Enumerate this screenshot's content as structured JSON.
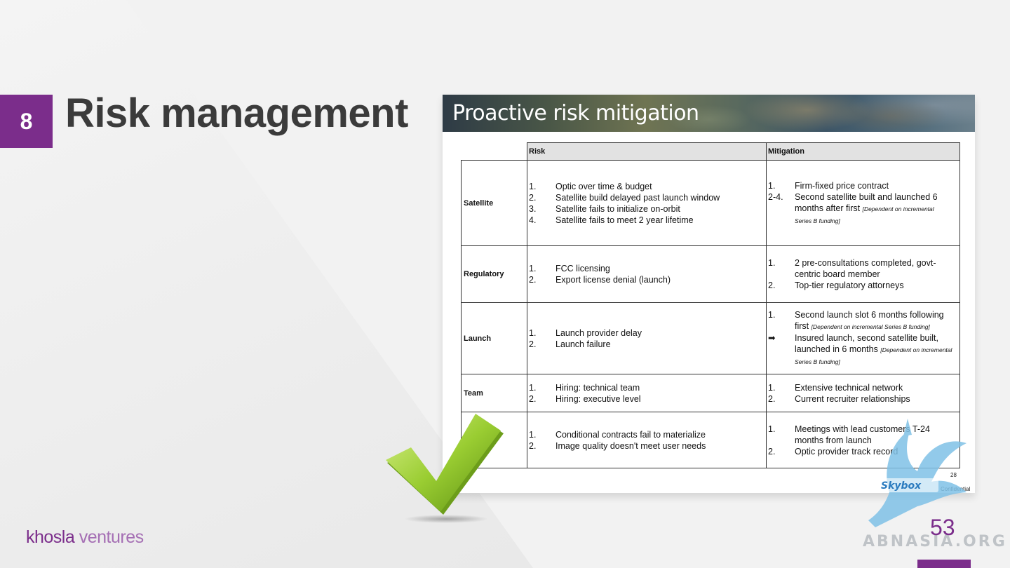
{
  "slide": {
    "number": "8",
    "title": "Risk management",
    "page_number": "53",
    "brand_part1": "khosla",
    "brand_part2": "ventures",
    "watermark_text": "ABNASIA.ORG"
  },
  "embedded_slide": {
    "title": "Proactive risk mitigation",
    "headers": {
      "risk": "Risk",
      "mitigation": "Mitigation"
    },
    "rows": [
      {
        "category": "Satellite",
        "risks": [
          {
            "num": "1.",
            "text": "Optic over time & budget"
          },
          {
            "num": "2.",
            "text": "Satellite build delayed past launch window"
          },
          {
            "num": "3.",
            "text": "Satellite fails to initialize on-orbit"
          },
          {
            "num": "4.",
            "text": "Satellite fails to meet 2 year lifetime"
          }
        ],
        "mitigations": [
          {
            "num": "1.",
            "text": "Firm-fixed price contract"
          },
          {
            "num": "2-4.",
            "text": "Second satellite built and launched 6"
          },
          {
            "num": "",
            "text": "months after first",
            "note": "[Dependent on incremental"
          },
          {
            "num": "",
            "text": "",
            "note": "Series B funding]"
          }
        ]
      },
      {
        "category": "Regulatory",
        "risks": [
          {
            "num": "1.",
            "text": "FCC licensing"
          },
          {
            "num": "2.",
            "text": "Export license denial (launch)"
          }
        ],
        "mitigations": [
          {
            "num": "1.",
            "text": "2 pre-consultations completed, govt-"
          },
          {
            "num": "",
            "text": "centric board member"
          },
          {
            "num": "2.",
            "text": "Top-tier regulatory attorneys"
          }
        ]
      },
      {
        "category": "Launch",
        "risks": [
          {
            "num": "1.",
            "text": "Launch provider delay"
          },
          {
            "num": "2.",
            "text": "Launch failure"
          }
        ],
        "mitigations": [
          {
            "num": "1.",
            "text": "Second launch slot 6 months following"
          },
          {
            "num": "",
            "text": "first",
            "note": "[Dependent on incremental Series B funding]"
          },
          {
            "num": "➡",
            "text": "Insured launch, second satellite built,"
          },
          {
            "num": "",
            "text": "launched in 6 months",
            "note": "[Dependent on incremental"
          },
          {
            "num": "",
            "text": "",
            "note": "Series B funding]"
          }
        ]
      },
      {
        "category": "Team",
        "risks": [
          {
            "num": "1.",
            "text": "Hiring: technical team"
          },
          {
            "num": "2.",
            "text": "Hiring: executive level"
          }
        ],
        "mitigations": [
          {
            "num": "1.",
            "text": "Extensive technical network"
          },
          {
            "num": "2.",
            "text": "Current recruiter relationships"
          }
        ]
      },
      {
        "category": "",
        "risks": [
          {
            "num": "1.",
            "text": "Conditional contracts fail to materialize"
          },
          {
            "num": "2.",
            "text": "Image quality doesn't meet user needs"
          }
        ],
        "mitigations": [
          {
            "num": "1.",
            "text": "Meetings with lead customers T-24"
          },
          {
            "num": "",
            "text": "months from launch"
          },
          {
            "num": "2.",
            "text": "Optic provider track record"
          }
        ]
      }
    ],
    "footer_page": "28",
    "footer_logo": "Skybox",
    "footer_label": "Confidential"
  },
  "colors": {
    "accent": "#7b2d8b",
    "title": "#3b3b3b",
    "check": "#8cc21f"
  }
}
